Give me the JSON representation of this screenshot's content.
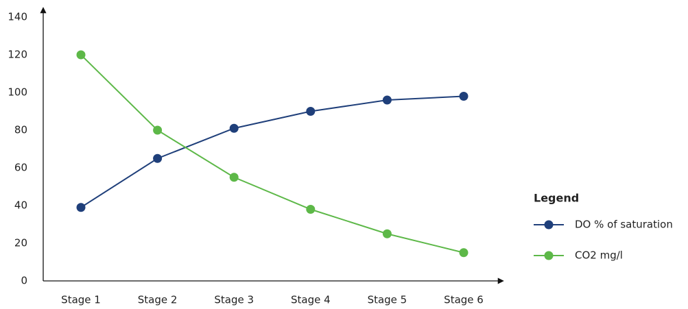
{
  "chart_data": {
    "type": "line",
    "categories": [
      "Stage 1",
      "Stage 2",
      "Stage 3",
      "Stage 4",
      "Stage 5",
      "Stage 6"
    ],
    "series": [
      {
        "name": "DO % of saturation",
        "values": [
          39,
          65,
          81,
          90,
          96,
          98
        ],
        "color": "#1f3f7a"
      },
      {
        "name": "CO2 mg/l",
        "values": [
          120,
          80,
          55,
          38,
          25,
          15
        ],
        "color": "#5db848"
      }
    ],
    "yticks": [
      0,
      20,
      40,
      60,
      80,
      100,
      120,
      140
    ],
    "ylim": [
      0,
      140
    ],
    "grid": false,
    "title": "",
    "xlabel": "",
    "ylabel": "",
    "legend": {
      "title": "Legend",
      "placement": "right"
    }
  }
}
